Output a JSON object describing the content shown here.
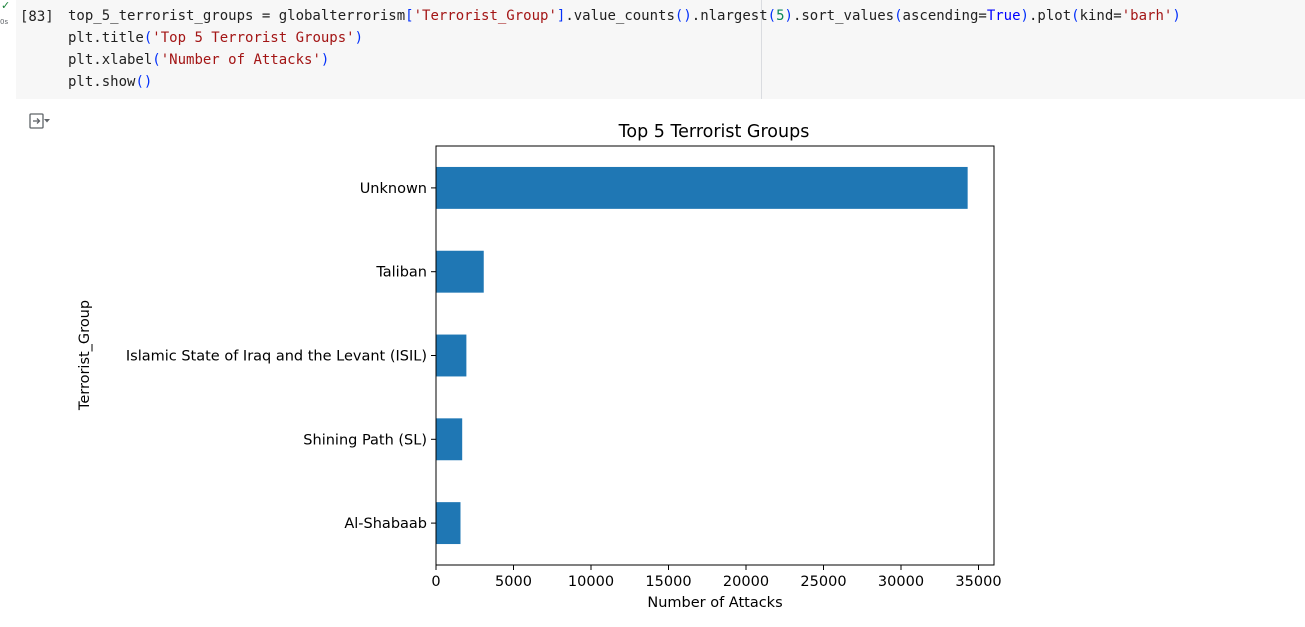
{
  "cell": {
    "status_check": "✓",
    "run_time": "0s",
    "exec_count": "[83]",
    "code": {
      "line1": {
        "pre": "top_5_terrorist_groups = globalterrorism",
        "br1": "[",
        "str1": "'Terrorist_Group'",
        "br2": "]",
        "m1": ".value_counts",
        "p1": "()",
        "m2": ".nlargest",
        "p2o": "(",
        "num": "5",
        "p2c": ")",
        "m3": ".sort_values",
        "p3o": "(",
        "arg": "ascending=",
        "kw": "True",
        "p3c": ")",
        "m4": ".plot",
        "p4o": "(",
        "arg2": "kind=",
        "str2": "'barh'",
        "p4c": ")"
      },
      "line2": {
        "pre": "plt.title",
        "po": "(",
        "str": "'Top 5 Terrorist Groups'",
        "pc": ")"
      },
      "line3": {
        "pre": "plt.xlabel",
        "po": "(",
        "str": "'Number of Attacks'",
        "pc": ")"
      },
      "line4": {
        "pre": "plt.show",
        "p": "()"
      }
    }
  },
  "output": {
    "icon": "output-toggle-icon"
  },
  "chart_data": {
    "type": "bar",
    "orientation": "horizontal",
    "title": "Top 5 Terrorist Groups",
    "xlabel": "Number of Attacks",
    "ylabel": "Terrorist_Group",
    "categories": [
      "Al-Shabaab",
      "Shining Path (SL)",
      "Islamic State of Iraq and the Levant (ISIL)",
      "Taliban",
      "Unknown"
    ],
    "values": [
      1580,
      1690,
      1960,
      3080,
      34300
    ],
    "xlim": [
      0,
      36000
    ],
    "xticks": [
      0,
      5000,
      10000,
      15000,
      20000,
      25000,
      30000,
      35000
    ],
    "xtick_labels": [
      "0",
      "5000",
      "10000",
      "15000",
      "20000",
      "25000",
      "30000",
      "35000"
    ],
    "color": "#1f77b4",
    "grid": false,
    "legend": false
  }
}
